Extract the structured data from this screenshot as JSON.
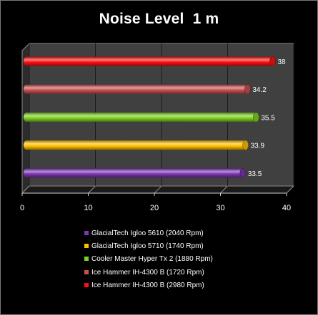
{
  "chart_data": {
    "type": "bar",
    "orientation": "horizontal",
    "title": "Noise Level  1 m",
    "xlim": [
      0,
      40
    ],
    "x_ticks": [
      0,
      10,
      20,
      30,
      40
    ],
    "grid": "vertical",
    "legend_position": "bottom",
    "bars_top_to_bottom": [
      {
        "name": "Ice Hammer IH-4300 B (2980 Rpm)",
        "value": 38,
        "label": "38",
        "color": "#ff1010"
      },
      {
        "name": "Ice Hammer IH-4300 B (1720 Rpm)",
        "value": 34.2,
        "label": "34.2",
        "color": "#c85050"
      },
      {
        "name": "Cooler Master Hyper Tx 2 (1880 Rpm)",
        "value": 35.5,
        "label": "35.5",
        "color": "#7ed020"
      },
      {
        "name": "GlacialTech Igloo 5710 (1740 Rpm)",
        "value": 33.9,
        "label": "33.9",
        "color": "#ffc000"
      },
      {
        "name": "GlacialTech Igloo 5610 (2040 Rpm)",
        "value": 33.5,
        "label": "33.5",
        "color": "#7b35b0"
      }
    ],
    "legend": [
      {
        "name": "GlacialTech Igloo 5610 (2040 Rpm)",
        "color": "#7b35b0"
      },
      {
        "name": "GlacialTech Igloo 5710 (1740 Rpm)",
        "color": "#ffc000"
      },
      {
        "name": "Cooler Master Hyper Tx 2 (1880 Rpm)",
        "color": "#7ed020"
      },
      {
        "name": "Ice Hammer IH-4300 B (1720 Rpm)",
        "color": "#c85050"
      },
      {
        "name": "Ice Hammer IH-4300 B (2980 Rpm)",
        "color": "#ff1010"
      }
    ]
  }
}
